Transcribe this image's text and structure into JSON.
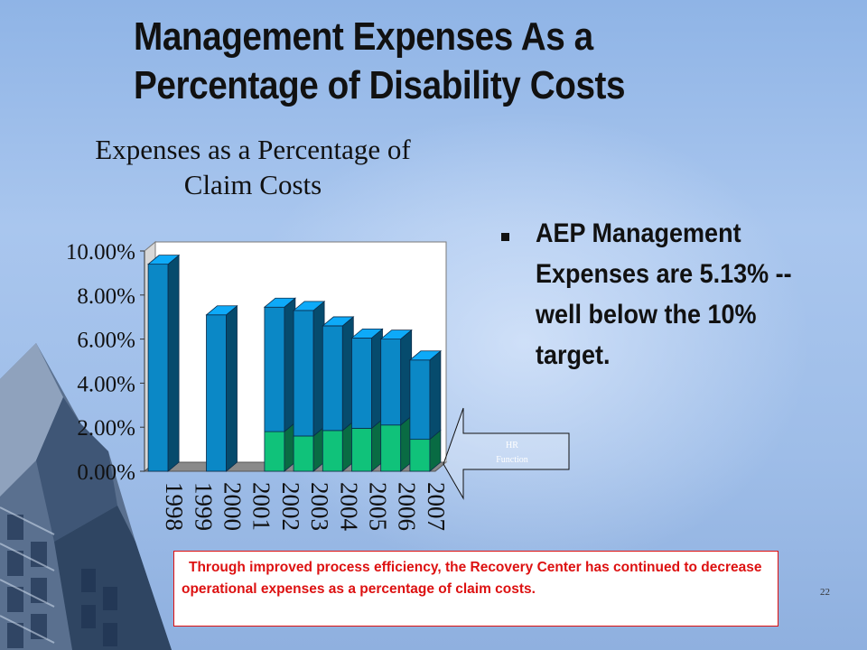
{
  "slide": {
    "title_lines": [
      "Management Expenses As a",
      "Percentage of Disability Costs"
    ],
    "bullet_text": "AEP Management Expenses are 5.13% -- well below the 10% target.",
    "footnote": "Through improved process efficiency,  the Recovery Center has continued to decrease operational expenses as a percentage of claim costs.",
    "page_number": "22"
  },
  "chart_data": {
    "type": "bar",
    "title_lines": [
      "Expenses as a Percentage of",
      "Claim Costs"
    ],
    "categories": [
      "1998",
      "1999",
      "2000",
      "2001",
      "2002",
      "2003",
      "2004",
      "2005",
      "2006",
      "2007"
    ],
    "y_ticks": [
      "0.00%",
      "2.00%",
      "4.00%",
      "6.00%",
      "8.00%",
      "10.00%"
    ],
    "ylim": [
      0,
      10
    ],
    "stacked": true,
    "series": [
      {
        "values": [
          0,
          0,
          0,
          0,
          1.8,
          1.6,
          1.85,
          1.95,
          2.1,
          1.45
        ],
        "color": "#10c27a"
      },
      {
        "values": [
          9.4,
          0,
          7.1,
          0,
          5.65,
          5.7,
          4.75,
          4.1,
          3.9,
          3.6
        ],
        "color": "#0b88c6"
      }
    ],
    "callout": {
      "lines": [
        "HR",
        "Function"
      ]
    },
    "grid": false
  }
}
